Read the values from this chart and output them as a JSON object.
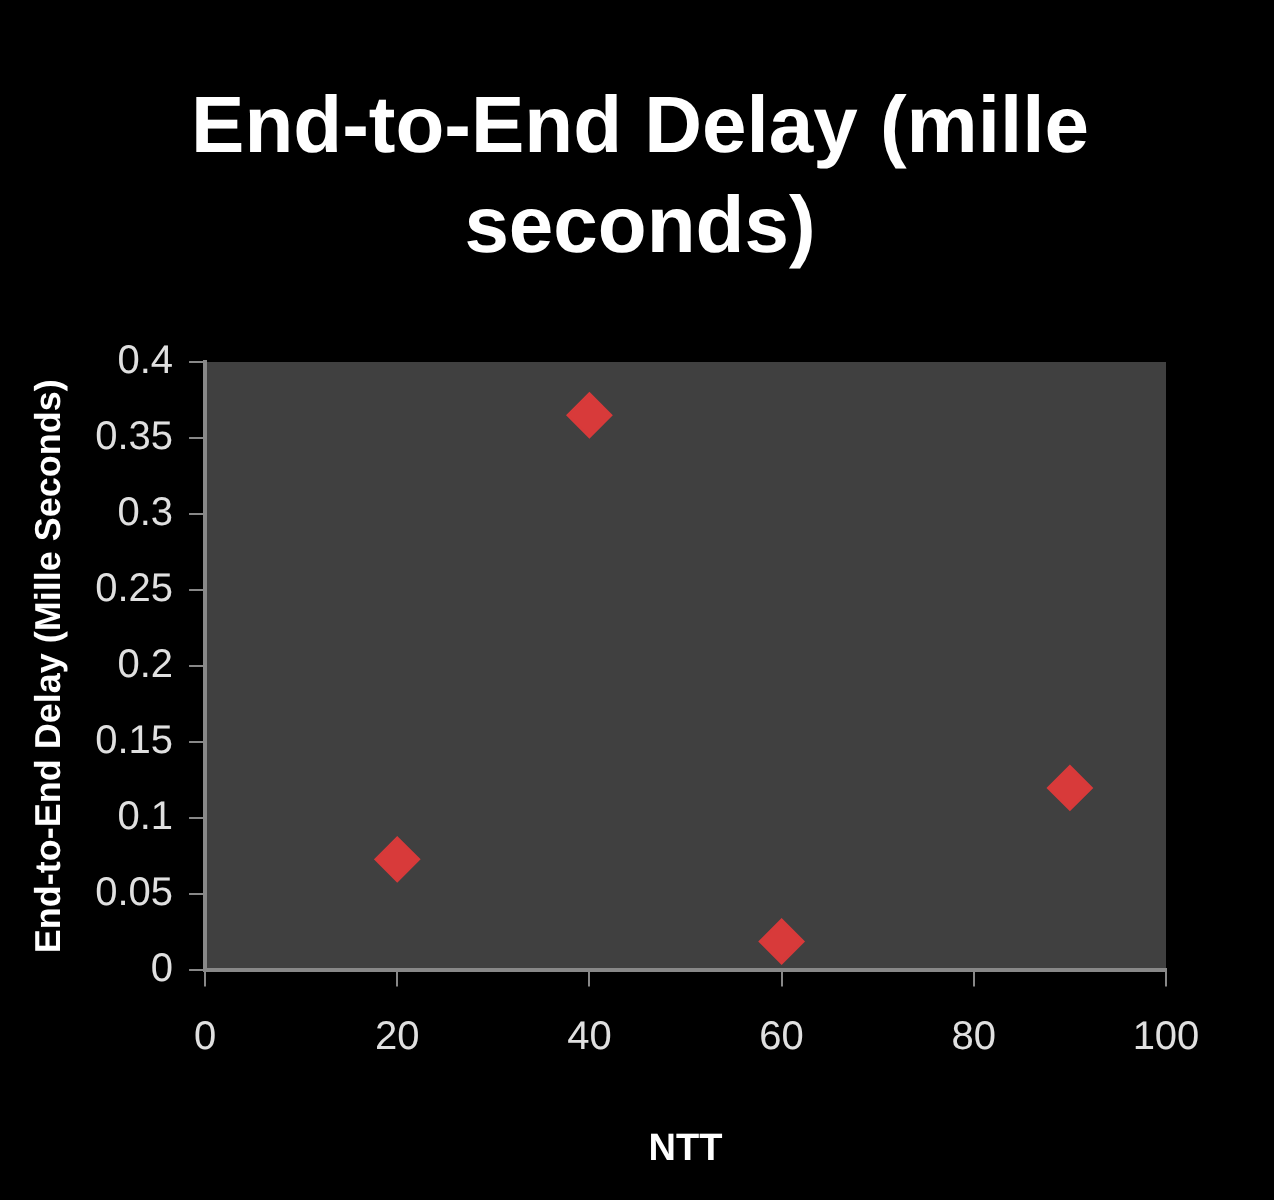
{
  "chart_data": {
    "type": "scatter",
    "title": "End-to-End Delay (mille seconds)",
    "xlabel": "NTT",
    "ylabel": "End-to-End Delay (Mille Seconds)",
    "series": [
      {
        "color": "#d83a3a",
        "x": [
          20,
          40,
          60,
          90
        ],
        "values": [
          0.073,
          0.365,
          0.019,
          0.12
        ]
      }
    ],
    "xlim": [
      0,
      100
    ],
    "xticks": [
      0,
      20,
      40,
      60,
      80,
      100
    ],
    "ylim": [
      0,
      0.4
    ],
    "yticks": [
      0,
      0.05,
      0.1,
      0.15,
      0.2,
      0.25,
      0.3,
      0.35,
      0.4
    ],
    "grid": false,
    "legend": false,
    "marker": "diamond"
  }
}
